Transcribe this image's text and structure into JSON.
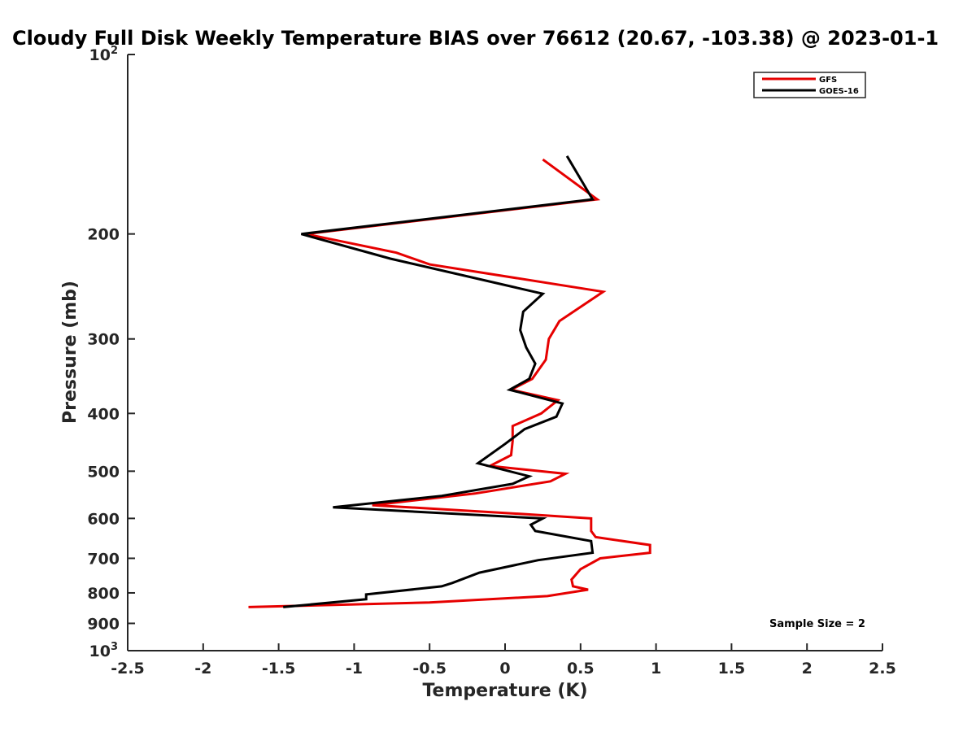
{
  "chart_data": {
    "type": "line",
    "title": "Cloudy Full Disk Weekly Temperature BIAS over 76612 (20.67, -103.38) @ 2023-01-1",
    "xlabel": "Temperature (K)",
    "ylabel": "Pressure (mb)",
    "xlim": [
      -2.5,
      2.5
    ],
    "ylim": [
      100,
      1000
    ],
    "y_scale": "log",
    "y_reversed": true,
    "grid": false,
    "legend_position": "top-right",
    "x_ticks": [
      -2.5,
      -2,
      -1.5,
      -1,
      -0.5,
      0,
      0.5,
      1,
      1.5,
      2,
      2.5
    ],
    "x_tick_labels": [
      "-2.5",
      "-2",
      "-1.5",
      "-1",
      "-0.5",
      "0",
      "0.5",
      "1",
      "1.5",
      "2",
      "2.5"
    ],
    "y_ticks": [
      200,
      300,
      400,
      500,
      600,
      700,
      800,
      900
    ],
    "y_tick_labels": [
      "200",
      "300",
      "400",
      "500",
      "600",
      "700",
      "800",
      "900"
    ],
    "y_decade_base": "10",
    "y_decade_labels": [
      {
        "value": 100,
        "exp": "2"
      },
      {
        "value": 1000,
        "exp": "3"
      }
    ],
    "annotation": "Sample Size = 2",
    "series": [
      {
        "name": "GFS",
        "color": "#e60000",
        "points": [
          [
            0.25,
            150
          ],
          [
            0.61,
            175
          ],
          [
            -1.32,
            200
          ],
          [
            -0.72,
            215
          ],
          [
            -0.5,
            225
          ],
          [
            0.65,
            250
          ],
          [
            0.36,
            280
          ],
          [
            0.29,
            300
          ],
          [
            0.27,
            325
          ],
          [
            0.18,
            350
          ],
          [
            0.04,
            365
          ],
          [
            0.35,
            380
          ],
          [
            0.24,
            400
          ],
          [
            0.05,
            420
          ],
          [
            0.05,
            445
          ],
          [
            0.04,
            470
          ],
          [
            -0.1,
            490
          ],
          [
            0.4,
            505
          ],
          [
            0.3,
            520
          ],
          [
            -0.2,
            545
          ],
          [
            -0.88,
            570
          ],
          [
            0.12,
            590
          ],
          [
            0.57,
            600
          ],
          [
            0.57,
            630
          ],
          [
            0.6,
            645
          ],
          [
            0.96,
            665
          ],
          [
            0.96,
            685
          ],
          [
            0.63,
            700
          ],
          [
            0.5,
            730
          ],
          [
            0.44,
            760
          ],
          [
            0.45,
            780
          ],
          [
            0.55,
            790
          ],
          [
            0.28,
            810
          ],
          [
            -0.5,
            830
          ],
          [
            -1.7,
            845
          ]
        ]
      },
      {
        "name": "GOES-16",
        "color": "#000000",
        "points": [
          [
            0.41,
            148
          ],
          [
            0.58,
            175
          ],
          [
            -1.35,
            200
          ],
          [
            -0.76,
            220
          ],
          [
            0.25,
            252
          ],
          [
            0.12,
            270
          ],
          [
            0.1,
            290
          ],
          [
            0.14,
            310
          ],
          [
            0.2,
            330
          ],
          [
            0.16,
            350
          ],
          [
            0.03,
            365
          ],
          [
            0.38,
            385
          ],
          [
            0.34,
            405
          ],
          [
            0.13,
            425
          ],
          [
            0.0,
            450
          ],
          [
            -0.18,
            485
          ],
          [
            0.16,
            510
          ],
          [
            0.05,
            525
          ],
          [
            -0.42,
            550
          ],
          [
            -1.14,
            575
          ],
          [
            0.25,
            600
          ],
          [
            0.17,
            615
          ],
          [
            0.2,
            630
          ],
          [
            0.57,
            655
          ],
          [
            0.58,
            685
          ],
          [
            0.22,
            705
          ],
          [
            -0.17,
            740
          ],
          [
            -0.35,
            770
          ],
          [
            -0.42,
            780
          ],
          [
            -0.92,
            805
          ],
          [
            -0.92,
            820
          ],
          [
            -1.47,
            845
          ]
        ]
      }
    ]
  }
}
